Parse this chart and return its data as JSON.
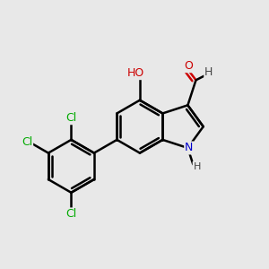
{
  "background_color": "#e8e8e8",
  "bond_color": "#000000",
  "bond_width": 1.8,
  "atom_colors": {
    "C": "#000000",
    "H": "#555555",
    "N": "#0000cc",
    "O": "#cc0000",
    "Cl": "#00aa00"
  },
  "font_size_atom": 9,
  "font_size_small": 8
}
